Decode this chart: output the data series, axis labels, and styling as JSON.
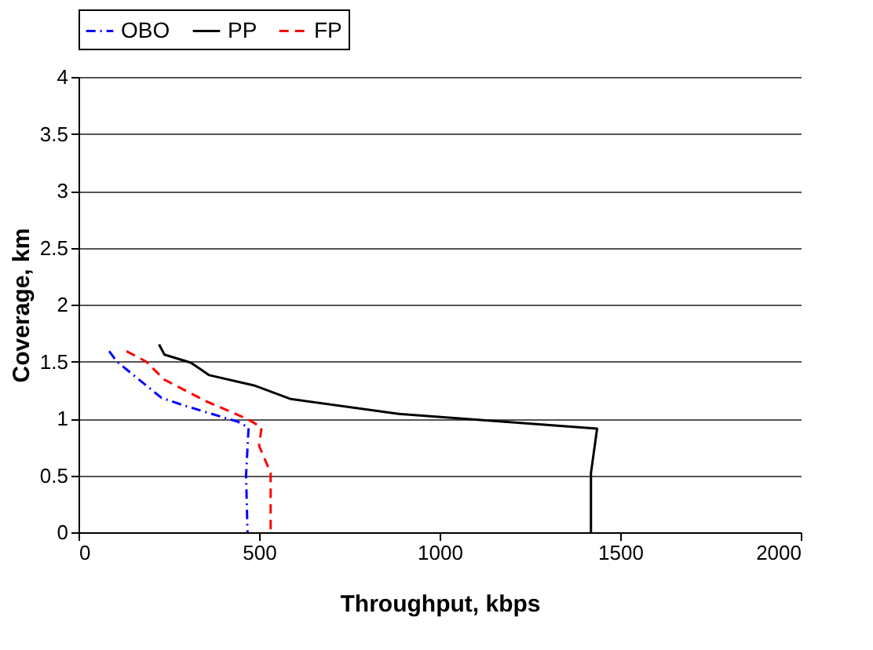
{
  "chart_data": {
    "type": "line",
    "xlabel": "Throughput, kbps",
    "ylabel": "Coverage, km",
    "xlim": [
      0,
      2000
    ],
    "xticks": [
      0,
      500,
      1000,
      1500,
      2000
    ],
    "ylim": [
      0,
      4
    ],
    "yticks": [
      0,
      0.5,
      1,
      1.5,
      2,
      2.5,
      3,
      3.5,
      4
    ],
    "grid": "y",
    "legend": "top",
    "marker": "none",
    "series": [
      {
        "name": "OBO",
        "color": "#0000ff",
        "line_style": "dashdot",
        "x": [
          85,
          106,
          230,
          296,
          442,
          471,
          464,
          468
        ],
        "values": [
          1.59,
          1.5,
          1.18,
          1.11,
          0.97,
          0.92,
          0.5,
          0
        ]
      },
      {
        "name": "PP",
        "color": "#000000",
        "line_style": "solid",
        "x": [
          223,
          238,
          311,
          362,
          486,
          588,
          887,
          1436,
          1419,
          1419
        ],
        "values": [
          1.65,
          1.56,
          1.49,
          1.38,
          1.29,
          1.17,
          1.04,
          0.91,
          0.52,
          0
        ]
      },
      {
        "name": "FP",
        "color": "#ff0000",
        "line_style": "dashed",
        "x": [
          133,
          187,
          238,
          354,
          471,
          507,
          500,
          532,
          532
        ],
        "values": [
          1.59,
          1.5,
          1.34,
          1.15,
          0.99,
          0.92,
          0.76,
          0.52,
          0
        ]
      }
    ]
  }
}
